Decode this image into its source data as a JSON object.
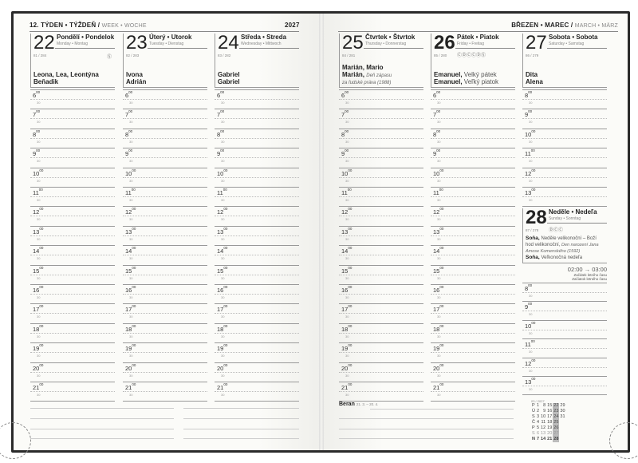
{
  "left_header": {
    "week": "12. TÝDEN • TÝŽDEŇ /",
    "week_alt": "WEEK • WOCHE",
    "year": "2027"
  },
  "right_header": {
    "month": "BŘEZEN • MAREC /",
    "month_alt": "MARCH • MÄRZ"
  },
  "days": [
    {
      "num": "22",
      "name": "Pondělí • Pondelok",
      "sub": "Monday • Montag",
      "doy": "81 / 284",
      "icons": "Ⓢ",
      "names": [
        [
          [
            "b",
            "Leona, Lea, Leontýna"
          ]
        ],
        [
          [
            "b",
            "Beňadik"
          ]
        ]
      ]
    },
    {
      "num": "23",
      "name": "Úterý • Utorok",
      "sub": "Tuesday • Dienstag",
      "doy": "82 / 283",
      "icons": "",
      "names": [
        [
          [
            "b",
            "Ivona"
          ]
        ],
        [
          [
            "b",
            "Adrián"
          ]
        ]
      ]
    },
    {
      "num": "24",
      "name": "Středa • Streda",
      "sub": "Wednesday • Mittwoch",
      "doy": "83 / 282",
      "icons": "",
      "names": [
        [
          [
            "b",
            "Gabriel"
          ]
        ],
        [
          [
            "b",
            "Gabriel"
          ]
        ]
      ]
    },
    {
      "num": "25",
      "name": "Čtvrtek • Štvrtok",
      "sub": "Thursday • Donnerstag",
      "doy": "84 / 281",
      "icons": "",
      "names": [
        [
          [
            "b",
            "Marián, Mario"
          ]
        ],
        [
          [
            "b",
            "Marián, "
          ],
          [
            "i",
            "Deň zápasu"
          ]
        ],
        [
          [
            "i",
            "za ľudské práva (1988)"
          ]
        ]
      ]
    },
    {
      "num": "26",
      "name": "Pátek • Piatok",
      "sub": "Friday • Freitag",
      "doy": "85 / 280",
      "icons": "ⒸⒹⒸⒸⒹⓈ",
      "names": [
        [
          [
            "b",
            "Emanuel, "
          ],
          [
            "r",
            "Velký pátek"
          ]
        ],
        [
          [
            "b",
            "Emanuel, "
          ],
          [
            "r",
            "Veľký piatok"
          ]
        ]
      ]
    },
    {
      "num": "27",
      "name": "Sobota • Sobota",
      "sub": "Saturday • Samstag",
      "doy": "86 / 279",
      "icons": "",
      "names": [
        [
          [
            "b",
            "Dita"
          ]
        ],
        [
          [
            "b",
            "Alena"
          ]
        ]
      ]
    },
    {
      "num": "28",
      "name": "Neděle • Nedeľa",
      "sub": "Sunday • Sonntag",
      "doy": "87 / 278",
      "icons": "ⒹⒸⒸ",
      "names": [
        [
          [
            "b",
            "Soňa, "
          ],
          [
            "r",
            "Neděle velikonoční – Boží"
          ]
        ],
        [
          [
            "r",
            "hod velikonoční, "
          ],
          [
            "i",
            "Den narození Jana"
          ]
        ],
        [
          [
            "i",
            "Amose Komenského (1592)"
          ]
        ],
        [
          [
            "b",
            "Soňa, "
          ],
          [
            "r",
            "Veľkonočná nedeľa"
          ]
        ]
      ]
    }
  ],
  "hours_full": [
    "6",
    "7",
    "8",
    "9",
    "10",
    "11",
    "12",
    "13",
    "14",
    "15",
    "16",
    "17",
    "18",
    "19",
    "20",
    "21"
  ],
  "hours_sat_a": [
    "8",
    "9",
    "10",
    "11",
    "12",
    "13"
  ],
  "hours_sun": [
    "8",
    "9",
    "10",
    "11",
    "12",
    "13"
  ],
  "minutes_sup": "00",
  "half": "30",
  "dst": {
    "time": "02:00 → 03:00",
    "cz": "Začátek letního času",
    "sk": "Začiatok letného času"
  },
  "zodiac": {
    "name": "Beran",
    "range": "21. 3. – 20. 4."
  },
  "mini_cal": {
    "title": "03 / 2027",
    "rows": [
      [
        "P",
        "1",
        "8",
        "15",
        "22",
        "29"
      ],
      [
        "Ú",
        "2",
        "9",
        "16",
        "23",
        "30"
      ],
      [
        "S",
        "3",
        "10",
        "17",
        "24",
        "31"
      ],
      [
        "Č",
        "4",
        "11",
        "18",
        "25",
        ""
      ],
      [
        "P",
        "5",
        "12",
        "19",
        "26",
        ""
      ],
      [
        "S",
        "6",
        "13",
        "20",
        "27",
        ""
      ],
      [
        "N",
        "7",
        "14",
        "21",
        "28",
        ""
      ]
    ],
    "highlight_col": 4
  }
}
